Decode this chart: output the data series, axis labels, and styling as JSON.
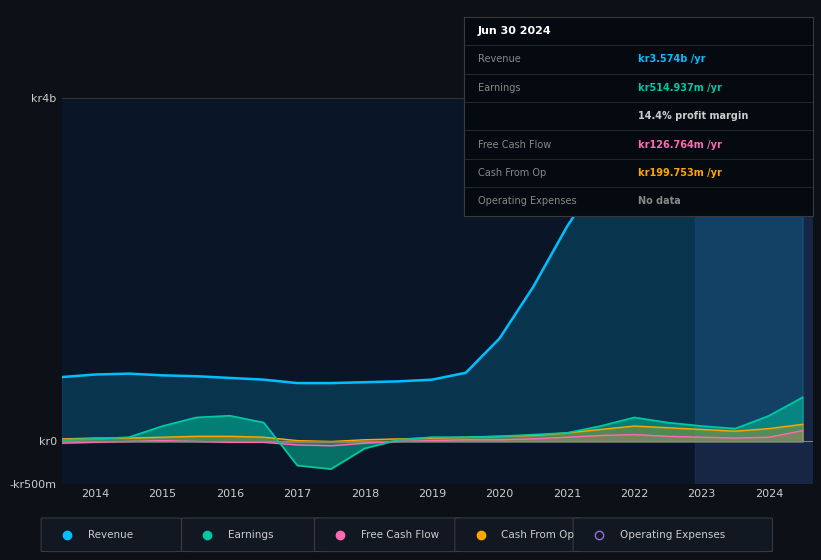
{
  "bg_color": "#0d1117",
  "chart_bg": "#0a1628",
  "years": [
    2013.5,
    2014.0,
    2014.5,
    2015.0,
    2015.5,
    2016.0,
    2016.5,
    2017.0,
    2017.5,
    2018.0,
    2018.5,
    2019.0,
    2019.5,
    2020.0,
    2020.5,
    2021.0,
    2021.5,
    2022.0,
    2022.5,
    2023.0,
    2023.5,
    2024.0,
    2024.5
  ],
  "revenue": [
    0.75,
    0.78,
    0.79,
    0.77,
    0.76,
    0.74,
    0.72,
    0.68,
    0.68,
    0.69,
    0.7,
    0.72,
    0.8,
    1.2,
    1.8,
    2.5,
    3.1,
    3.5,
    3.55,
    3.5,
    3.45,
    3.4,
    3.574
  ],
  "earnings": [
    0.02,
    0.03,
    0.05,
    0.18,
    0.28,
    0.3,
    0.22,
    -0.28,
    -0.32,
    -0.08,
    0.02,
    0.05,
    0.05,
    0.06,
    0.08,
    0.1,
    0.18,
    0.28,
    0.22,
    0.18,
    0.15,
    0.3,
    0.515
  ],
  "free_cash_flow": [
    -0.02,
    -0.01,
    0.0,
    0.01,
    0.0,
    -0.01,
    -0.01,
    -0.04,
    -0.05,
    -0.02,
    0.0,
    0.01,
    0.02,
    0.02,
    0.03,
    0.05,
    0.07,
    0.08,
    0.06,
    0.05,
    0.04,
    0.05,
    0.127
  ],
  "cash_from_op": [
    0.03,
    0.04,
    0.04,
    0.05,
    0.06,
    0.06,
    0.05,
    0.01,
    0.0,
    0.02,
    0.03,
    0.04,
    0.05,
    0.06,
    0.07,
    0.1,
    0.14,
    0.18,
    0.16,
    0.14,
    0.12,
    0.15,
    0.2
  ],
  "operating_expenses": [
    0.0,
    0.0,
    0.0,
    0.0,
    0.0,
    0.0,
    0.0,
    0.0,
    0.0,
    0.0,
    0.0,
    0.0,
    0.0,
    0.0,
    0.0,
    0.0,
    0.0,
    0.0,
    0.0,
    0.0,
    0.0,
    0.0,
    0.0
  ],
  "revenue_color": "#00bfff",
  "earnings_color": "#00c8a0",
  "fcf_color": "#ff69b4",
  "cash_op_color": "#ffa500",
  "op_exp_color": "#9370db",
  "ylim": [
    -0.5,
    4.0
  ],
  "xtick_years": [
    2014,
    2015,
    2016,
    2017,
    2018,
    2019,
    2020,
    2021,
    2022,
    2023,
    2024
  ],
  "legend_entries": [
    "Revenue",
    "Earnings",
    "Free Cash Flow",
    "Cash From Op",
    "Operating Expenses"
  ],
  "legend_colors": [
    "#00bfff",
    "#00c8a0",
    "#ff69b4",
    "#ffa500",
    "#9370db"
  ],
  "infobox_rows": [
    {
      "label": "Jun 30 2024",
      "value": "",
      "label_color": "#ffffff",
      "value_color": "#ffffff",
      "is_title": true
    },
    {
      "label": "Revenue",
      "value": "kr3.574b /yr",
      "label_color": "#888888",
      "value_color": "#00bfff",
      "is_title": false
    },
    {
      "label": "Earnings",
      "value": "kr514.937m /yr",
      "label_color": "#888888",
      "value_color": "#00c8a0",
      "is_title": false
    },
    {
      "label": "",
      "value": "14.4% profit margin",
      "label_color": "#888888",
      "value_color": "#cccccc",
      "is_title": false
    },
    {
      "label": "Free Cash Flow",
      "value": "kr126.764m /yr",
      "label_color": "#888888",
      "value_color": "#ff69b4",
      "is_title": false
    },
    {
      "label": "Cash From Op",
      "value": "kr199.753m /yr",
      "label_color": "#888888",
      "value_color": "#ffa500",
      "is_title": false
    },
    {
      "label": "Operating Expenses",
      "value": "No data",
      "label_color": "#888888",
      "value_color": "#888888",
      "is_title": false
    }
  ]
}
